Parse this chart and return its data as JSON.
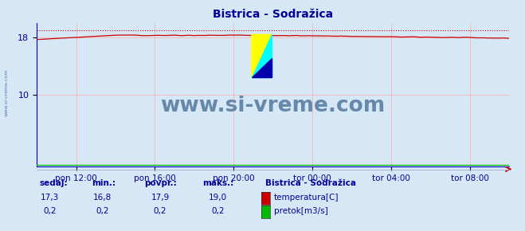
{
  "title": "Bistrica - Sodražica",
  "title_color": "#000099",
  "bg_color": "#d6e8f5",
  "plot_bg_color": "#d6e8f5",
  "ylim": [
    0,
    20
  ],
  "ytick_values": [
    10,
    18
  ],
  "xlabel_color": "#000099",
  "ylabel_color": "#000099",
  "xtick_labels": [
    "pon 12:00",
    "pon 16:00",
    "pon 20:00",
    "tor 00:00",
    "tor 04:00",
    "tor 08:00"
  ],
  "watermark_text": "www.si-vreme.com",
  "watermark_color": "#6688aa",
  "temp_color": "#cc0000",
  "flow_color": "#00bb00",
  "max_line_color": "#cc0000",
  "max_value": 19.0,
  "temp_min": 16.8,
  "temp_max": 19.0,
  "temp_avg": 17.9,
  "temp_now": 17.3,
  "flow_min": 0.2,
  "flow_max": 0.2,
  "flow_avg": 0.2,
  "flow_now": 0.2,
  "legend_title": "Bistrica - Sodražica",
  "footer_color": "#000099",
  "sidebar_text": "www.si-vreme.com",
  "sidebar_color": "#5577aa",
  "n_points": 289,
  "xtick_positions": [
    24,
    72,
    120,
    168,
    216,
    264
  ]
}
